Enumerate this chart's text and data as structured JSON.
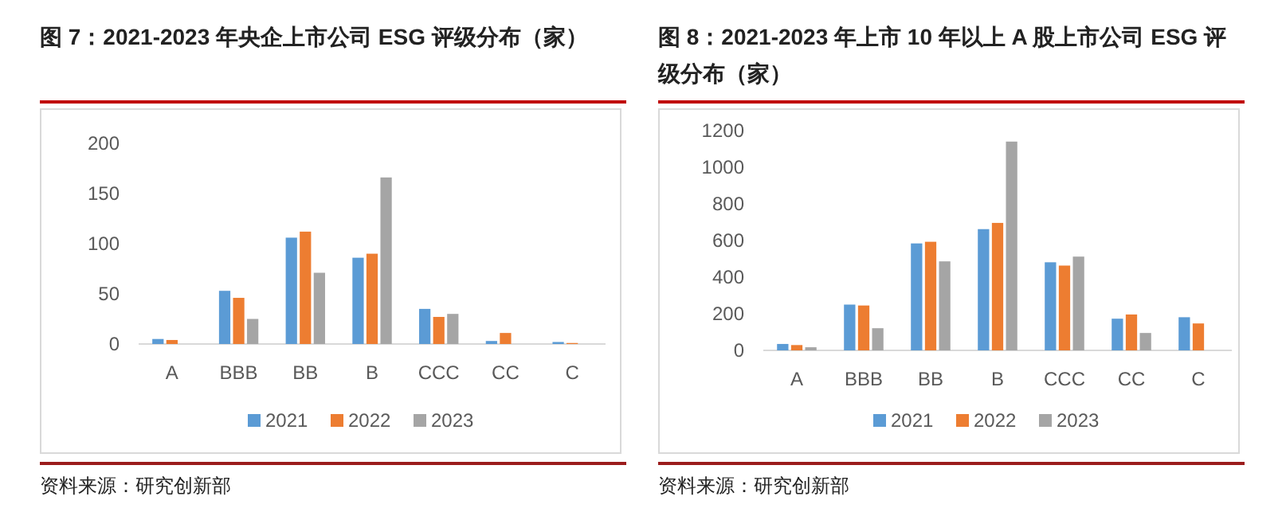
{
  "chart_data": [
    {
      "type": "bar",
      "title": "图 7：2021-2023 年央企上市公司 ESG 评级分布（家）",
      "categories": [
        "A",
        "BBB",
        "BB",
        "B",
        "CCC",
        "CC",
        "C"
      ],
      "ylim": [
        0,
        200
      ],
      "yticks": [
        0,
        50,
        100,
        150,
        200
      ],
      "grid": false,
      "legend": "bottom",
      "series": [
        {
          "name": "2021",
          "color": "#5b9bd5",
          "values": [
            5,
            53,
            106,
            86,
            35,
            3,
            2
          ]
        },
        {
          "name": "2022",
          "color": "#ed7d31",
          "values": [
            4,
            46,
            112,
            90,
            27,
            11,
            1
          ]
        },
        {
          "name": "2023",
          "color": "#a5a5a5",
          "values": [
            0,
            25,
            71,
            166,
            30,
            0,
            0
          ]
        }
      ],
      "annotations": [
        "资料来源：研究创新部"
      ]
    },
    {
      "type": "bar",
      "title": "图 8：2021-2023 年上市 10 年以上 A 股上市公司 ESG 评级分布（家）",
      "categories": [
        "A",
        "BBB",
        "BB",
        "B",
        "CCC",
        "CC",
        "C"
      ],
      "ylim": [
        0,
        1200
      ],
      "yticks": [
        0,
        200,
        400,
        600,
        800,
        1000,
        1200
      ],
      "grid": false,
      "legend": "bottom",
      "series": [
        {
          "name": "2021",
          "color": "#5b9bd5",
          "values": [
            35,
            250,
            584,
            662,
            481,
            173,
            181
          ]
        },
        {
          "name": "2022",
          "color": "#ed7d31",
          "values": [
            29,
            245,
            593,
            696,
            463,
            196,
            147
          ]
        },
        {
          "name": "2023",
          "color": "#a5a5a5",
          "values": [
            17,
            121,
            486,
            1140,
            512,
            95,
            0
          ]
        }
      ],
      "annotations": [
        "资料来源：研究创新部"
      ]
    }
  ]
}
